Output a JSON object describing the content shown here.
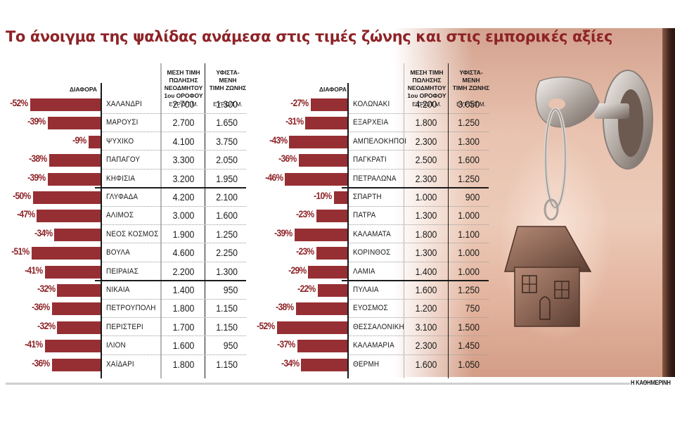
{
  "title": "Το άνοιγμα της ψαλίδας ανάμεσα στις τιμές ζώνης και στις εμπορικές αξίες",
  "headers": {
    "diff": "ΔΙΑΦΟΡΑ",
    "price_col": [
      "ΜΕΣΗ ΤΙΜΗ",
      "ΠΩΛΗΣΗΣ",
      "ΝΕΟΔΜΗΤΟΥ",
      "1ου ΟΡΟΦΟΥ"
    ],
    "zone_col": [
      "ΥΦΙΣΤΑ-",
      "ΜΕΝΗ",
      "ΤΙΜΗ ΖΩΝΗΣ"
    ],
    "unit": "ΕΥΡΩ/Τ.Μ."
  },
  "credit": "Η ΚΑΘΗΜΕΡΙΝΗ",
  "colors": {
    "accent": "#8e2327",
    "bar": "#962f33",
    "text": "#1a1a1a"
  },
  "chart_data": [
    {
      "type": "bar",
      "orientation": "horizontal",
      "title": "Το άνοιγμα της ψαλίδας ανάμεσα στις τιμές ζώνης και στις εμπορικές αξίες (αριστερός πίνακας)",
      "xlabel": "ΔΙΑΦΟΡΑ",
      "categories": [
        "ΧΑΛΑΝΔΡΙ",
        "ΜΑΡΟΥΣΙ",
        "ΨΥΧΙΚΟ",
        "ΠΑΠΑΓΟΥ",
        "ΚΗΦΙΣΙΑ",
        "ΓΛΥΦΑΔΑ",
        "ΑΛΙΜΟΣ",
        "ΝΕΟΣ ΚΟΣΜΟΣ",
        "ΒΟΥΛΑ",
        "ΠΕΙΡΑΙΑΣ",
        "ΝΙΚΑΙΑ",
        "ΠΕΤΡΟΥΠΟΛΗ",
        "ΠΕΡΙΣΤΕΡΙ",
        "ΙΛΙΟΝ",
        "ΧΑΪΔΑΡΙ"
      ],
      "series": [
        {
          "name": "ΔΙΑΦΟΡΑ (%)",
          "values": [
            -52,
            -39,
            -9,
            -38,
            -39,
            -50,
            -47,
            -34,
            -51,
            -41,
            -32,
            -36,
            -32,
            -41,
            -36
          ]
        },
        {
          "name": "ΜΕΣΗ ΤΙΜΗ ΠΩΛΗΣΗΣ ΝΕΟΔΜΗΤΟΥ 1ου ΟΡΟΦΟΥ (ΕΥΡΩ/Τ.Μ.)",
          "values": [
            2700,
            2700,
            4100,
            3300,
            3200,
            4200,
            3000,
            1900,
            4600,
            2200,
            1400,
            1800,
            1700,
            1600,
            1800
          ]
        },
        {
          "name": "ΥΦΙΣΤΑΜΕΝΗ ΤΙΜΗ ΖΩΝΗΣ (ΕΥΡΩ/Τ.Μ.)",
          "values": [
            1300,
            1650,
            3750,
            2050,
            1950,
            2100,
            1600,
            1250,
            2250,
            1300,
            950,
            1150,
            1150,
            950,
            1150
          ]
        }
      ],
      "groups": [
        [
          0,
          4
        ],
        [
          5,
          9
        ],
        [
          10,
          14
        ]
      ],
      "xlim": [
        -52,
        0
      ]
    },
    {
      "type": "bar",
      "orientation": "horizontal",
      "title": "Το άνοιγμα της ψαλίδας ανάμεσα στις τιμές ζώνης και στις εμπορικές αξίες (δεξιός πίνακας)",
      "xlabel": "ΔΙΑΦΟΡΑ",
      "categories": [
        "ΚΟΛΩΝΑΚΙ",
        "ΕΞΑΡΧΕΙΑ",
        "ΑΜΠΕΛΟΚΗΠΟΙ",
        "ΠΑΓΚΡΑΤΙ",
        "ΠΕΤΡΑΛΩΝΑ",
        "ΣΠΑΡΤΗ",
        "ΠΑΤΡΑ",
        "ΚΑΛΑΜΑΤΑ",
        "ΚΟΡΙΝΘΟΣ",
        "ΛΑΜΙΑ",
        "ΠΥΛΑΙΑ",
        "ΕΥΟΣΜΟΣ",
        "ΘΕΣΣΑΛΟΝΙΚΗ",
        "ΚΑΛΑΜΑΡΙΑ",
        "ΘΕΡΜΗ"
      ],
      "series": [
        {
          "name": "ΔΙΑΦΟΡΑ (%)",
          "values": [
            -27,
            -31,
            -43,
            -36,
            -46,
            -10,
            -23,
            -39,
            -23,
            -29,
            -22,
            -38,
            -52,
            -37,
            -34
          ]
        },
        {
          "name": "ΜΕΣΗ ΤΙΜΗ ΠΩΛΗΣΗΣ ΝΕΟΔΜΗΤΟΥ 1ου ΟΡΟΦΟΥ (ΕΥΡΩ/Τ.Μ.)",
          "values": [
            4200,
            1800,
            2300,
            2500,
            2300,
            1000,
            1300,
            1800,
            1300,
            1400,
            1600,
            1200,
            3100,
            2300,
            1600
          ]
        },
        {
          "name": "ΥΦΙΣΤΑΜΕΝΗ ΤΙΜΗ ΖΩΝΗΣ (ΕΥΡΩ/Τ.Μ.)",
          "values": [
            3050,
            1250,
            1300,
            1600,
            1250,
            900,
            1000,
            1100,
            1000,
            1000,
            1250,
            750,
            1500,
            1450,
            1050
          ]
        }
      ],
      "groups": [
        [
          0,
          4
        ],
        [
          5,
          9
        ],
        [
          10,
          14
        ]
      ],
      "xlim": [
        -52,
        0
      ]
    }
  ],
  "left_rows": [
    {
      "pct": "-52%",
      "name": "ΧΑΛΑΝΔΡΙ",
      "price": "2.700",
      "zone": "1.300"
    },
    {
      "pct": "-39%",
      "name": "ΜΑΡΟΥΣΙ",
      "price": "2.700",
      "zone": "1.650"
    },
    {
      "pct": "-9%",
      "name": "ΨΥΧΙΚΟ",
      "price": "4.100",
      "zone": "3.750"
    },
    {
      "pct": "-38%",
      "name": "ΠΑΠΑΓΟΥ",
      "price": "3.300",
      "zone": "2.050"
    },
    {
      "pct": "-39%",
      "name": "ΚΗΦΙΣΙΑ",
      "price": "3.200",
      "zone": "1.950"
    },
    {
      "pct": "-50%",
      "name": "ΓΛΥΦΑΔΑ",
      "price": "4.200",
      "zone": "2.100"
    },
    {
      "pct": "-47%",
      "name": "ΑΛΙΜΟΣ",
      "price": "3.000",
      "zone": "1.600"
    },
    {
      "pct": "-34%",
      "name": "ΝΕΟΣ ΚΟΣΜΟΣ",
      "price": "1.900",
      "zone": "1.250"
    },
    {
      "pct": "-51%",
      "name": "ΒΟΥΛΑ",
      "price": "4.600",
      "zone": "2.250"
    },
    {
      "pct": "-41%",
      "name": "ΠΕΙΡΑΙΑΣ",
      "price": "2.200",
      "zone": "1.300"
    },
    {
      "pct": "-32%",
      "name": "ΝΙΚΑΙΑ",
      "price": "1.400",
      "zone": "950"
    },
    {
      "pct": "-36%",
      "name": "ΠΕΤΡΟΥΠΟΛΗ",
      "price": "1.800",
      "zone": "1.150"
    },
    {
      "pct": "-32%",
      "name": "ΠΕΡΙΣΤΕΡΙ",
      "price": "1.700",
      "zone": "1.150"
    },
    {
      "pct": "-41%",
      "name": "ΙΛΙΟΝ",
      "price": "1.600",
      "zone": "950"
    },
    {
      "pct": "-36%",
      "name": "ΧΑΪΔΑΡΙ",
      "price": "1.800",
      "zone": "1.150"
    }
  ],
  "right_rows": [
    {
      "pct": "-27%",
      "name": "ΚΟΛΩΝΑΚΙ",
      "price": "4.200",
      "zone": "3.050"
    },
    {
      "pct": "-31%",
      "name": "ΕΞΑΡΧΕΙΑ",
      "price": "1.800",
      "zone": "1.250"
    },
    {
      "pct": "-43%",
      "name": "ΑΜΠΕΛΟΚΗΠΟΙ",
      "price": "2.300",
      "zone": "1.300"
    },
    {
      "pct": "-36%",
      "name": "ΠΑΓΚΡΑΤΙ",
      "price": "2.500",
      "zone": "1.600"
    },
    {
      "pct": "-46%",
      "name": "ΠΕΤΡΑΛΩΝΑ",
      "price": "2.300",
      "zone": "1.250"
    },
    {
      "pct": "-10%",
      "name": "ΣΠΑΡΤΗ",
      "price": "1.000",
      "zone": "900"
    },
    {
      "pct": "-23%",
      "name": "ΠΑΤΡΑ",
      "price": "1.300",
      "zone": "1.000"
    },
    {
      "pct": "-39%",
      "name": "ΚΑΛΑΜΑΤΑ",
      "price": "1.800",
      "zone": "1.100"
    },
    {
      "pct": "-23%",
      "name": "ΚΟΡΙΝΘΟΣ",
      "price": "1.300",
      "zone": "1.000"
    },
    {
      "pct": "-29%",
      "name": "ΛΑΜΙΑ",
      "price": "1.400",
      "zone": "1.000"
    },
    {
      "pct": "-22%",
      "name": "ΠΥΛΑΙΑ",
      "price": "1.600",
      "zone": "1.250"
    },
    {
      "pct": "-38%",
      "name": "ΕΥΟΣΜΟΣ",
      "price": "1.200",
      "zone": "750"
    },
    {
      "pct": "-52%",
      "name": "ΘΕΣΣΑΛΟΝΙΚΗ",
      "price": "3.100",
      "zone": "1.500"
    },
    {
      "pct": "-37%",
      "name": "ΚΑΛΑΜΑΡΙΑ",
      "price": "2.300",
      "zone": "1.450"
    },
    {
      "pct": "-34%",
      "name": "ΘΕΡΜΗ",
      "price": "1.600",
      "zone": "1.050"
    }
  ]
}
